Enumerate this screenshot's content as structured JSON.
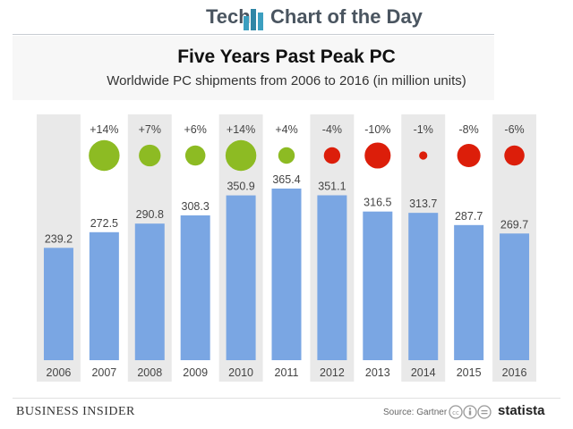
{
  "header": {
    "brand_left": "Tech",
    "brand_right": "Chart of the Day"
  },
  "footer": {
    "publisher": "BUSINESS INSIDER",
    "source": "Source: Gartner",
    "statista": "statista"
  },
  "colors": {
    "bar": "#7aa6e3",
    "growth_positive": "#8dbb23",
    "growth_negative": "#dc1e0a",
    "band": "#e9e9e9",
    "brand_icon": "#3c9fc0"
  },
  "chart_data": {
    "type": "bar",
    "title": "Five Years Past Peak PC",
    "subtitle": "Worldwide PC shipments from 2006 to 2016 (in million units)",
    "categories": [
      "2006",
      "2007",
      "2008",
      "2009",
      "2010",
      "2011",
      "2012",
      "2013",
      "2014",
      "2015",
      "2016"
    ],
    "values": [
      239.2,
      272.5,
      290.8,
      308.3,
      350.9,
      365.4,
      351.1,
      316.5,
      313.7,
      287.7,
      269.7
    ],
    "value_labels": [
      "239.2",
      "272.5",
      "290.8",
      "308.3",
      "350.9",
      "365.4",
      "351.1",
      "316.5",
      "313.7",
      "287.7",
      "269.7"
    ],
    "growth_labels": [
      "",
      "+14%",
      "+7%",
      "+6%",
      "+14%",
      "+4%",
      "-4%",
      "-10%",
      "-1%",
      "-8%",
      "-6%"
    ],
    "growth_values": [
      null,
      14,
      7,
      6,
      14,
      4,
      -4,
      -10,
      -1,
      -8,
      -6
    ],
    "ylim": [
      0,
      400
    ],
    "grid": false,
    "legend": "none"
  }
}
